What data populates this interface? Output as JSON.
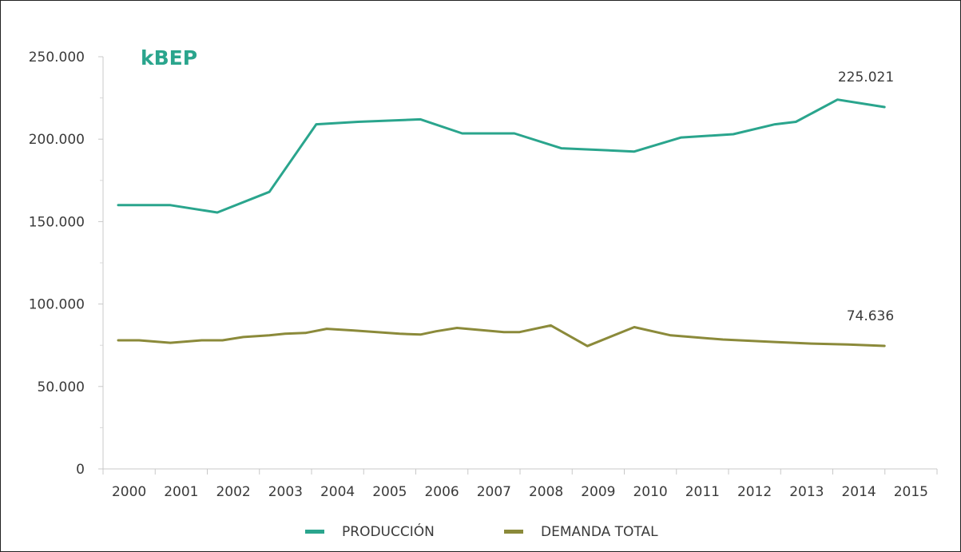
{
  "chart_data": {
    "type": "line",
    "title": "",
    "unit_label": "kBEP",
    "xlabel": "",
    "ylabel": "",
    "x": [
      "2000",
      "2001",
      "2002",
      "2003",
      "2004",
      "2005",
      "2006",
      "2007",
      "2008",
      "2009",
      "2010",
      "2011",
      "2012",
      "2013",
      "2014",
      "2015"
    ],
    "ylim": [
      0,
      250000
    ],
    "y_ticks": [
      0,
      50000,
      100000,
      150000,
      200000,
      250000
    ],
    "y_tick_labels": [
      "0",
      "50.000",
      "100.000",
      "150.000",
      "200.000",
      "250.000"
    ],
    "grid": false,
    "legend_position": "bottom",
    "series": [
      {
        "name": "PRODUCCIÓN",
        "color": "#2aa58d",
        "points": [
          {
            "x": 2000.0,
            "y": 160000
          },
          {
            "x": 2000.4,
            "y": 160000
          },
          {
            "x": 2001.0,
            "y": 160000
          },
          {
            "x": 2001.9,
            "y": 155500
          },
          {
            "x": 2002.9,
            "y": 168000
          },
          {
            "x": 2003.8,
            "y": 209000
          },
          {
            "x": 2004.6,
            "y": 210500
          },
          {
            "x": 2005.8,
            "y": 212000
          },
          {
            "x": 2006.6,
            "y": 203500
          },
          {
            "x": 2007.6,
            "y": 203500
          },
          {
            "x": 2008.5,
            "y": 194500
          },
          {
            "x": 2009.9,
            "y": 192500
          },
          {
            "x": 2010.8,
            "y": 201000
          },
          {
            "x": 2011.8,
            "y": 203000
          },
          {
            "x": 2012.6,
            "y": 209000
          },
          {
            "x": 2013.0,
            "y": 210500
          },
          {
            "x": 2013.8,
            "y": 224000
          },
          {
            "x": 2014.7,
            "y": 219500
          }
        ],
        "end_label": "225.021"
      },
      {
        "name": "DEMANDA TOTAL",
        "color": "#8b8a3a",
        "points": [
          {
            "x": 2000.0,
            "y": 78000
          },
          {
            "x": 2000.4,
            "y": 78000
          },
          {
            "x": 2001.0,
            "y": 76500
          },
          {
            "x": 2001.6,
            "y": 78000
          },
          {
            "x": 2002.0,
            "y": 78000
          },
          {
            "x": 2002.4,
            "y": 80000
          },
          {
            "x": 2002.9,
            "y": 81000
          },
          {
            "x": 2003.2,
            "y": 82000
          },
          {
            "x": 2003.6,
            "y": 82500
          },
          {
            "x": 2004.0,
            "y": 85000
          },
          {
            "x": 2004.5,
            "y": 84000
          },
          {
            "x": 2005.4,
            "y": 82000
          },
          {
            "x": 2005.8,
            "y": 81500
          },
          {
            "x": 2006.1,
            "y": 83500
          },
          {
            "x": 2006.5,
            "y": 85500
          },
          {
            "x": 2007.4,
            "y": 83000
          },
          {
            "x": 2007.7,
            "y": 83000
          },
          {
            "x": 2008.3,
            "y": 87000
          },
          {
            "x": 2009.0,
            "y": 74500
          },
          {
            "x": 2009.9,
            "y": 86000
          },
          {
            "x": 2010.6,
            "y": 81000
          },
          {
            "x": 2011.0,
            "y": 80000
          },
          {
            "x": 2011.6,
            "y": 78500
          },
          {
            "x": 2012.6,
            "y": 77000
          },
          {
            "x": 2013.3,
            "y": 76000
          },
          {
            "x": 2014.0,
            "y": 75500
          },
          {
            "x": 2014.7,
            "y": 74636
          }
        ],
        "end_label": "74.636"
      }
    ]
  }
}
